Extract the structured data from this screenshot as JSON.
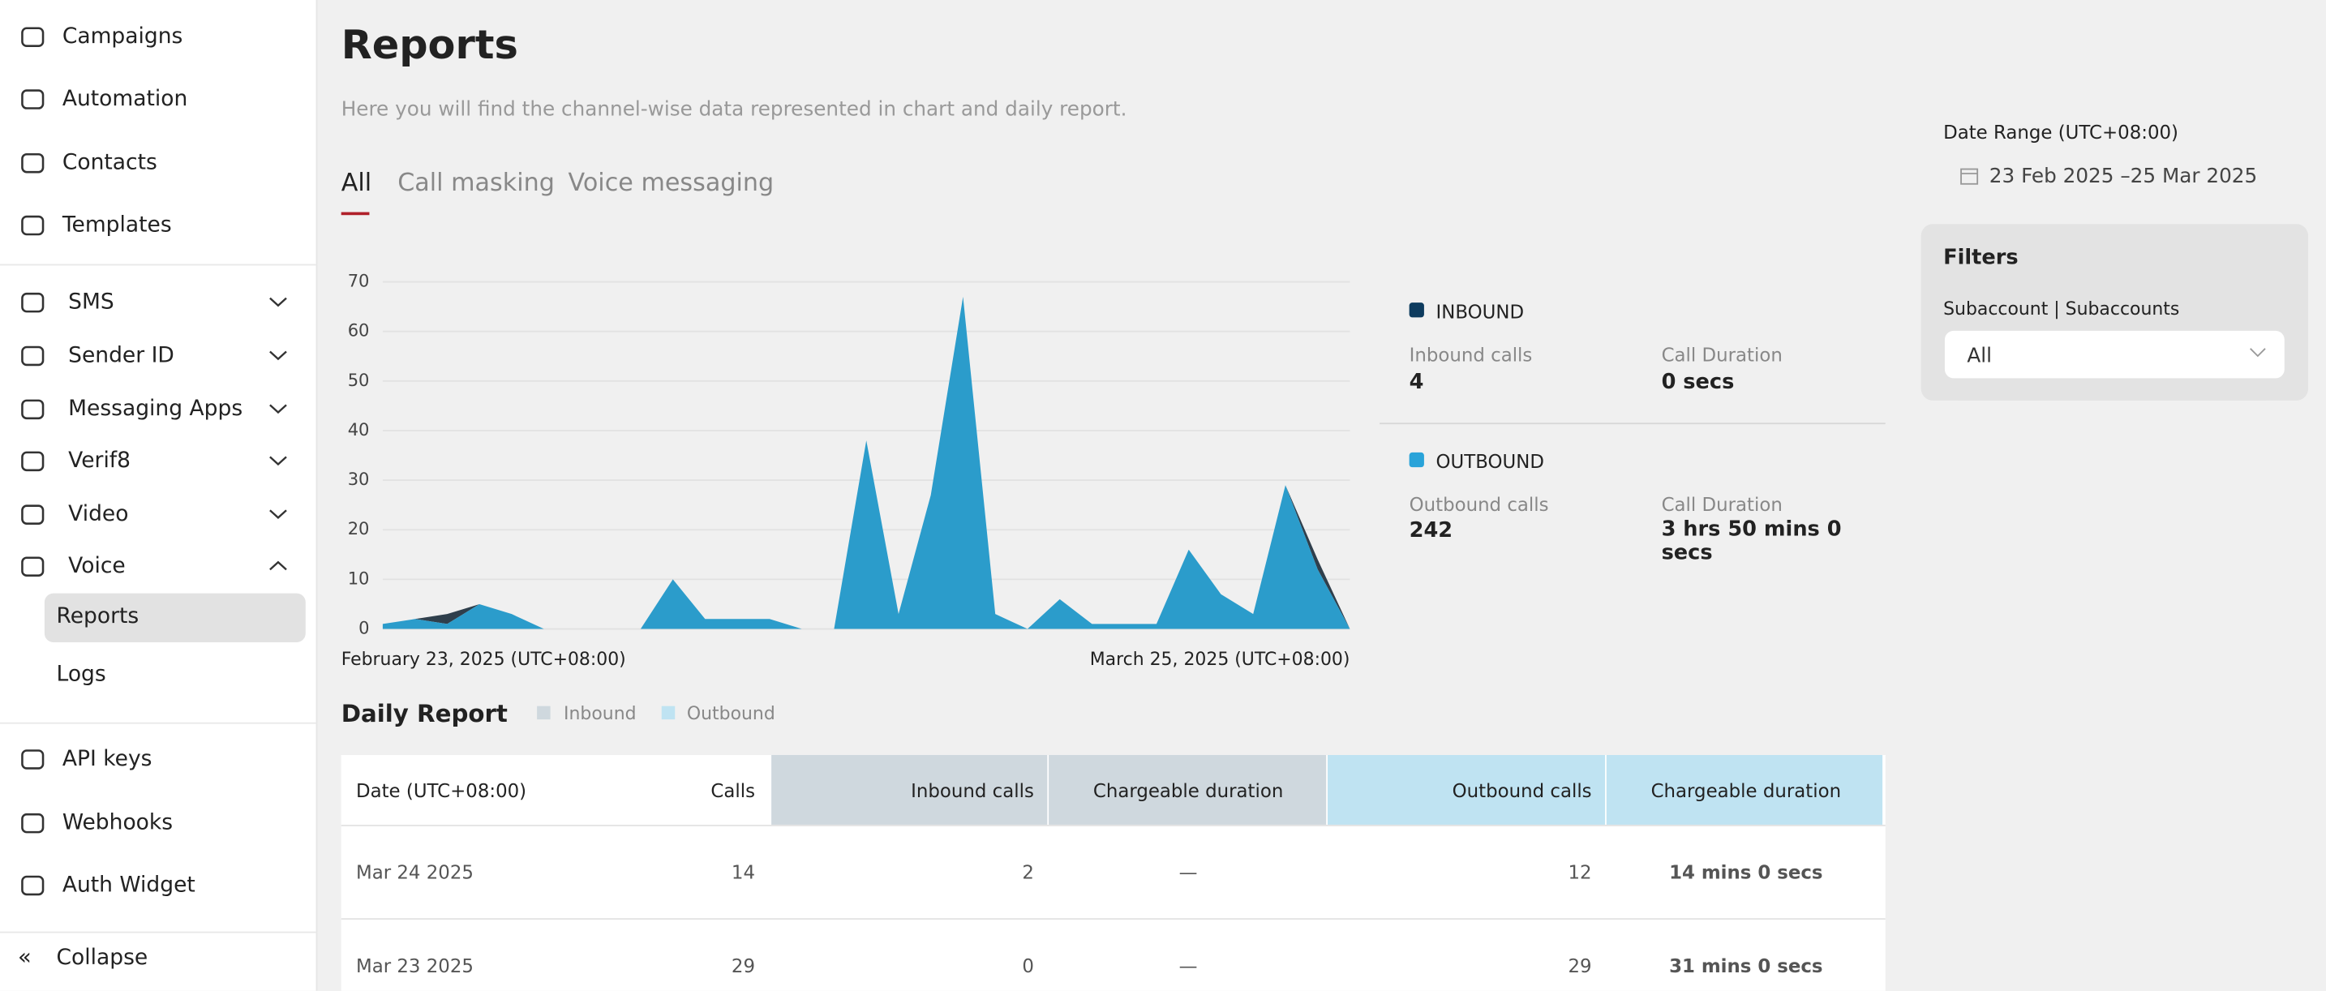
{
  "sidebar": {
    "top": [
      "Campaigns",
      "Automation",
      "Contacts",
      "Templates"
    ],
    "menus": [
      "SMS",
      "Sender ID",
      "Messaging Apps",
      "Verif8",
      "Video",
      "Voice"
    ],
    "voice_sub": [
      "Reports",
      "Logs"
    ],
    "bottom": [
      "API keys",
      "Webhooks",
      "Auth Widget"
    ],
    "collapse": "Collapse"
  },
  "header": {
    "title": "Reports",
    "subtitle": "Here you will find the channel-wise data represented in chart and daily report."
  },
  "tabs": [
    "All",
    "Call masking",
    "Voice messaging"
  ],
  "chart_data": {
    "type": "area",
    "stacked": true,
    "categories": [
      "February 23, 2025 (UTC+08:00)",
      null,
      null,
      null,
      null,
      null,
      null,
      null,
      null,
      null,
      null,
      null,
      null,
      null,
      null,
      null,
      null,
      null,
      null,
      null,
      null,
      null,
      null,
      null,
      null,
      null,
      null,
      null,
      null,
      null,
      "March 25, 2025 (UTC+08:00)"
    ],
    "series": [
      {
        "color": "#2b9ccb",
        "values": [
          1,
          2,
          1,
          5,
          3,
          0,
          0,
          0,
          0,
          10,
          2,
          2,
          2,
          0,
          0,
          38,
          3,
          27,
          67,
          3,
          0,
          6,
          1,
          1,
          1,
          16,
          7,
          3,
          29,
          12,
          0
        ]
      },
      {
        "color": "#2f3f4c",
        "values": [
          0,
          0,
          2,
          0,
          0,
          0,
          0,
          0,
          0,
          0,
          0,
          0,
          0,
          0,
          0,
          0,
          0,
          0,
          0,
          0,
          0,
          0,
          0,
          0,
          0,
          0,
          0,
          0,
          0,
          2,
          0
        ]
      }
    ],
    "ylim": [
      0,
      70
    ],
    "yticks": [
      0,
      10,
      20,
      30,
      40,
      50,
      60,
      70
    ],
    "grid": true
  },
  "summary": {
    "inbound": {
      "label": "INBOUND",
      "color": "#0d3b5e",
      "calls_label": "Inbound calls",
      "calls": 4,
      "duration_label": "Call Duration",
      "duration": "0 secs"
    },
    "outbound": {
      "label": "OUTBOUND",
      "color": "#29a3d9",
      "calls_label": "Outbound calls",
      "calls": 242,
      "duration_label": "Call Duration",
      "duration": "3 hrs 50 mins 0 secs"
    }
  },
  "filters": {
    "date_range_label": "Date Range (UTC+08:00)",
    "date_range": "23 Feb 2025 –25 Mar 2025",
    "title": "Filters",
    "subaccount_label": "Subaccount | Subaccounts",
    "subaccount_value": "All"
  },
  "daily_report": {
    "title": "Daily Report",
    "legend": [
      "Inbound",
      "Outbound"
    ],
    "columns": [
      "Date (UTC+08:00)",
      "Calls",
      "Inbound calls",
      "Chargeable duration",
      "Outbound calls",
      "Chargeable duration"
    ],
    "rows": [
      [
        "Mar 24 2025",
        14,
        2,
        "—",
        12,
        "14 mins 0 secs"
      ],
      [
        "Mar 23 2025",
        29,
        0,
        "—",
        29,
        "31 mins 0 secs"
      ]
    ]
  }
}
